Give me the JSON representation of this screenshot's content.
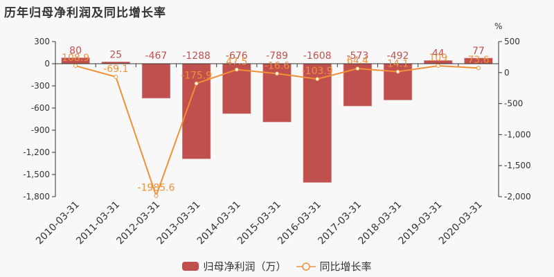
{
  "title": "历年归母净利润及同比增长率",
  "colors": {
    "bar": "#c0504d",
    "line": "#f0913a",
    "bar_label": "#c0504d",
    "line_label": "#f0913a",
    "axis": "#333333"
  },
  "legend": {
    "bar_label": "归母净利润（万）",
    "line_label": "同比增长率"
  },
  "right_axis_unit": "%",
  "chart_data": {
    "type": "bar+line",
    "title": "历年归母净利润及同比增长率",
    "categories": [
      "2010-03-31",
      "2011-03-31",
      "2012-03-31",
      "2013-03-31",
      "2014-03-31",
      "2015-03-31",
      "2016-03-31",
      "2017-03-31",
      "2018-03-31",
      "2019-03-31",
      "2020-03-31"
    ],
    "series": [
      {
        "name": "归母净利润（万）",
        "type": "bar",
        "axis": "left",
        "values": [
          80,
          25,
          -467,
          -1288,
          -676,
          -789,
          -1608,
          -573,
          -492,
          44,
          77
        ]
      },
      {
        "name": "同比增长率",
        "type": "line",
        "axis": "right",
        "values": [
          108.9,
          -69.1,
          -1985.6,
          -175.9,
          47.5,
          -16.6,
          -103.9,
          64.4,
          14.1,
          109,
          73.6
        ]
      }
    ],
    "left_axis": {
      "ticks": [
        300,
        0,
        -300,
        -600,
        -900,
        -1200,
        -1500,
        -1800
      ],
      "tick_labels": [
        "300",
        "0",
        "-300",
        "-600",
        "-900",
        "-1,200",
        "-1,500",
        "-1,800"
      ],
      "ylim": [
        -1800,
        300
      ]
    },
    "right_axis": {
      "label": "%",
      "ticks": [
        500,
        0,
        -500,
        -1000,
        -1500,
        -2000
      ],
      "tick_labels": [
        "500",
        "0",
        "-500",
        "-1,000",
        "-1,500",
        "-2,000"
      ],
      "ylim": [
        -2000,
        500
      ]
    },
    "legend_position": "bottom",
    "grid": false
  }
}
